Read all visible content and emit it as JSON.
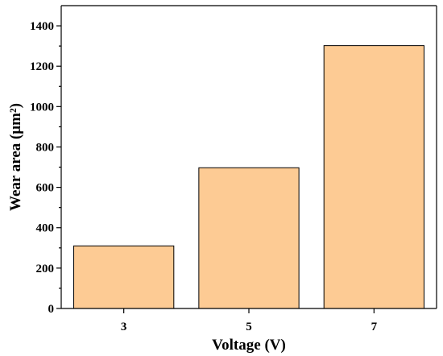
{
  "chart_data": {
    "type": "bar",
    "categories": [
      "3",
      "5",
      "7"
    ],
    "values": [
      310,
      697,
      1302
    ],
    "xlabel": "Voltage (V)",
    "ylabel": "Wear area (μm²)",
    "ylim": [
      0,
      1500
    ],
    "yticks": [
      0,
      200,
      400,
      600,
      800,
      1000,
      1200,
      1400
    ],
    "grid": false,
    "legend": "none",
    "bar_color": "#FDCB94",
    "bar_edge_color": "#000000"
  }
}
